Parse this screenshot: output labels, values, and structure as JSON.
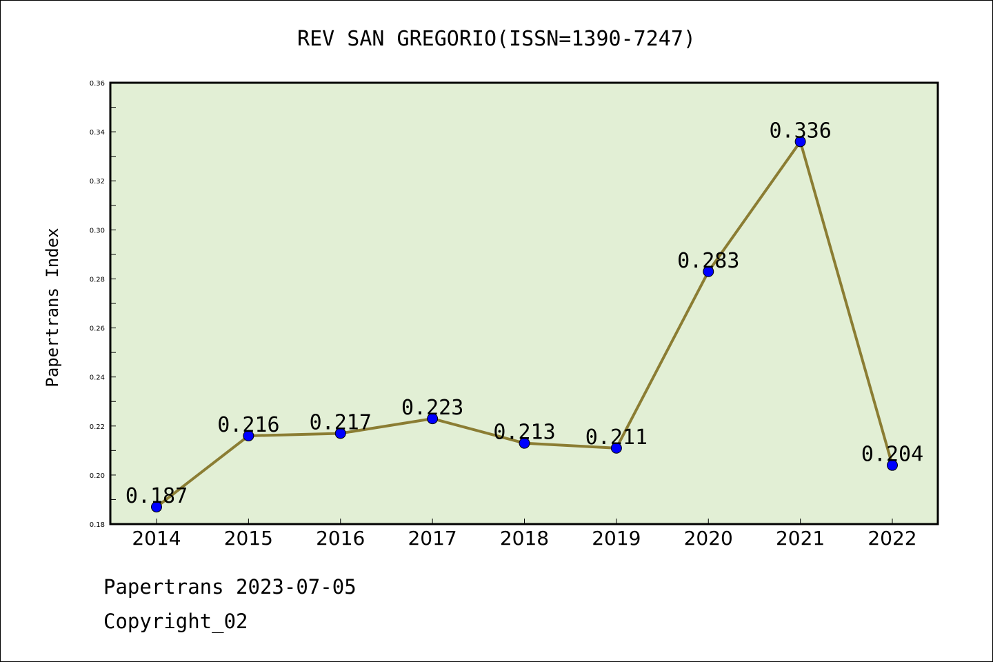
{
  "chart_data": {
    "type": "line",
    "title": "REV SAN GREGORIO(ISSN=1390-7247)",
    "xlabel": "",
    "ylabel": "Papertrans Index",
    "categories": [
      "2014",
      "2015",
      "2016",
      "2017",
      "2018",
      "2019",
      "2020",
      "2021",
      "2022"
    ],
    "series": [
      {
        "values": [
          0.187,
          0.216,
          0.217,
          0.223,
          0.213,
          0.211,
          0.283,
          0.336,
          0.204
        ],
        "data_labels": [
          "0.187",
          "0.216",
          "0.217",
          "0.223",
          "0.213",
          "0.211",
          "0.283",
          "0.336",
          "0.204"
        ],
        "line_color": "#8b7d33",
        "marker_color": "#0000ff"
      }
    ],
    "ylim": [
      0.18,
      0.36
    ],
    "yticks": [
      "0.18",
      "0.20",
      "0.22",
      "0.24",
      "0.26",
      "0.28",
      "0.30",
      "0.32",
      "0.34",
      "0.36"
    ],
    "plot_background": "#e2efd5",
    "grid": false
  },
  "footer": {
    "line1": "Papertrans 2023-07-05",
    "line2": "Copyright_02"
  }
}
